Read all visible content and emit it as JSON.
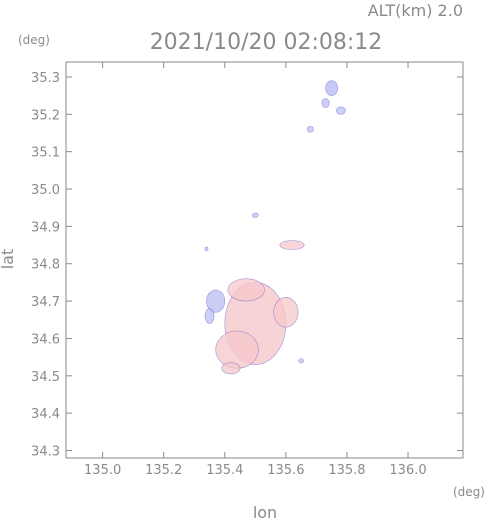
{
  "chart_data": {
    "type": "heatmap",
    "title": "2021/10/20 02:08:12",
    "subtitle": "ALT(km) 2.0",
    "xlabel": "lon",
    "ylabel": "lat",
    "x_unit": "(deg)",
    "y_unit": "(deg)",
    "xlim": [
      134.88,
      136.18
    ],
    "ylim": [
      34.28,
      35.34
    ],
    "x_ticks": [
      135.0,
      135.2,
      135.4,
      135.6,
      135.8,
      136.0
    ],
    "x_tick_labels": [
      "135.0",
      "135.2",
      "135.4",
      "135.6",
      "135.8",
      "136.0"
    ],
    "y_ticks": [
      34.3,
      34.4,
      34.5,
      34.6,
      34.7,
      34.8,
      34.9,
      35.0,
      35.1,
      35.2,
      35.3
    ],
    "y_tick_labels": [
      "34.3",
      "34.4",
      "34.5",
      "34.6",
      "34.7",
      "34.8",
      "34.9",
      "35.0",
      "35.1",
      "35.2",
      "35.3"
    ],
    "grid": false,
    "colors": {
      "positive": "#f6c9cc",
      "negative": "#b9bdf2",
      "edge": "#5a55c8",
      "axis": "#8a8a8a"
    },
    "echo_regions": [
      {
        "lon": 135.5,
        "lat": 34.64,
        "r_lon": 0.1,
        "r_lat": 0.11,
        "sign": "positive",
        "intensity": 0.6
      },
      {
        "lon": 135.44,
        "lat": 34.57,
        "r_lon": 0.07,
        "r_lat": 0.05,
        "sign": "positive",
        "intensity": 0.55
      },
      {
        "lon": 135.6,
        "lat": 34.67,
        "r_lon": 0.04,
        "r_lat": 0.04,
        "sign": "positive",
        "intensity": 0.5
      },
      {
        "lon": 135.47,
        "lat": 34.73,
        "r_lon": 0.06,
        "r_lat": 0.03,
        "sign": "positive",
        "intensity": 0.5
      },
      {
        "lon": 135.42,
        "lat": 34.52,
        "r_lon": 0.03,
        "r_lat": 0.015,
        "sign": "positive",
        "intensity": 0.5
      },
      {
        "lon": 135.37,
        "lat": 34.7,
        "r_lon": 0.03,
        "r_lat": 0.03,
        "sign": "negative",
        "intensity": 0.45
      },
      {
        "lon": 135.35,
        "lat": 34.66,
        "r_lon": 0.015,
        "r_lat": 0.02,
        "sign": "negative",
        "intensity": 0.4
      },
      {
        "lon": 135.62,
        "lat": 34.85,
        "r_lon": 0.04,
        "r_lat": 0.012,
        "sign": "positive",
        "intensity": 0.45
      },
      {
        "lon": 135.75,
        "lat": 35.27,
        "r_lon": 0.02,
        "r_lat": 0.02,
        "sign": "negative",
        "intensity": 0.55
      },
      {
        "lon": 135.73,
        "lat": 35.23,
        "r_lon": 0.012,
        "r_lat": 0.012,
        "sign": "negative",
        "intensity": 0.4
      },
      {
        "lon": 135.78,
        "lat": 35.21,
        "r_lon": 0.015,
        "r_lat": 0.01,
        "sign": "negative",
        "intensity": 0.4
      },
      {
        "lon": 135.68,
        "lat": 35.16,
        "r_lon": 0.01,
        "r_lat": 0.008,
        "sign": "negative",
        "intensity": 0.3
      },
      {
        "lon": 135.5,
        "lat": 34.93,
        "r_lon": 0.01,
        "r_lat": 0.006,
        "sign": "negative",
        "intensity": 0.3
      },
      {
        "lon": 135.34,
        "lat": 34.84,
        "r_lon": 0.005,
        "r_lat": 0.005,
        "sign": "negative",
        "intensity": 0.3
      },
      {
        "lon": 135.65,
        "lat": 34.54,
        "r_lon": 0.008,
        "r_lat": 0.006,
        "sign": "negative",
        "intensity": 0.3
      }
    ]
  }
}
